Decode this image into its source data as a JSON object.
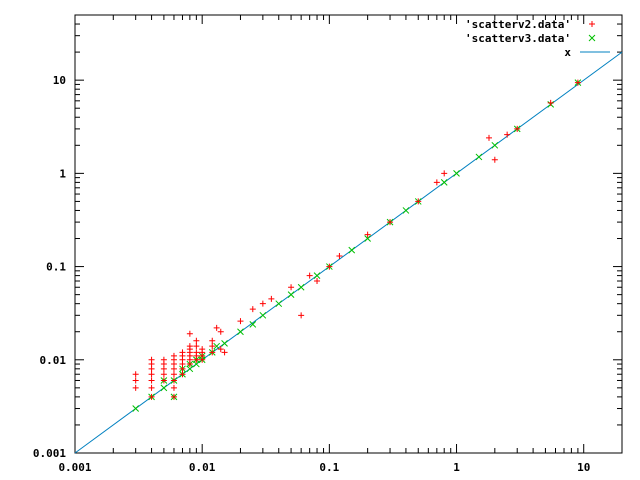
{
  "chart_data": {
    "type": "scatter",
    "xscale": "log",
    "yscale": "log",
    "xlim": [
      0.001,
      20
    ],
    "ylim": [
      0.001,
      50
    ],
    "grid": false,
    "legend_position": "top-right",
    "x_tick_labels": [
      "0.001",
      "0.01",
      "0.1",
      "1",
      "10"
    ],
    "x_ticks": [
      0.001,
      0.01,
      0.1,
      1,
      10
    ],
    "y_tick_labels": [
      "0.001",
      "0.01",
      "0.1",
      "1",
      "10"
    ],
    "y_ticks": [
      0.001,
      0.01,
      0.1,
      1,
      10
    ],
    "series": [
      {
        "name": "'scatterv2.data'",
        "marker": "plus",
        "color": "#ff0000",
        "points": [
          [
            0.003,
            0.007
          ],
          [
            0.003,
            0.006
          ],
          [
            0.003,
            0.005
          ],
          [
            0.004,
            0.01
          ],
          [
            0.004,
            0.009
          ],
          [
            0.004,
            0.008
          ],
          [
            0.004,
            0.007
          ],
          [
            0.004,
            0.006
          ],
          [
            0.004,
            0.005
          ],
          [
            0.004,
            0.004
          ],
          [
            0.005,
            0.01
          ],
          [
            0.005,
            0.009
          ],
          [
            0.005,
            0.008
          ],
          [
            0.005,
            0.007
          ],
          [
            0.005,
            0.006
          ],
          [
            0.006,
            0.011
          ],
          [
            0.006,
            0.01
          ],
          [
            0.006,
            0.009
          ],
          [
            0.006,
            0.008
          ],
          [
            0.006,
            0.007
          ],
          [
            0.006,
            0.006
          ],
          [
            0.006,
            0.005
          ],
          [
            0.006,
            0.004
          ],
          [
            0.007,
            0.012
          ],
          [
            0.007,
            0.011
          ],
          [
            0.007,
            0.01
          ],
          [
            0.007,
            0.009
          ],
          [
            0.007,
            0.008
          ],
          [
            0.007,
            0.007
          ],
          [
            0.008,
            0.019
          ],
          [
            0.008,
            0.014
          ],
          [
            0.008,
            0.013
          ],
          [
            0.008,
            0.012
          ],
          [
            0.008,
            0.011
          ],
          [
            0.008,
            0.01
          ],
          [
            0.008,
            0.009
          ],
          [
            0.009,
            0.016
          ],
          [
            0.009,
            0.014
          ],
          [
            0.009,
            0.012
          ],
          [
            0.009,
            0.011
          ],
          [
            0.009,
            0.01
          ],
          [
            0.01,
            0.013
          ],
          [
            0.01,
            0.012
          ],
          [
            0.01,
            0.011
          ],
          [
            0.01,
            0.01
          ],
          [
            0.012,
            0.016
          ],
          [
            0.012,
            0.014
          ],
          [
            0.012,
            0.012
          ],
          [
            0.013,
            0.022
          ],
          [
            0.014,
            0.02
          ],
          [
            0.014,
            0.013
          ],
          [
            0.015,
            0.012
          ],
          [
            0.02,
            0.026
          ],
          [
            0.025,
            0.035
          ],
          [
            0.03,
            0.04
          ],
          [
            0.035,
            0.045
          ],
          [
            0.05,
            0.06
          ],
          [
            0.07,
            0.08
          ],
          [
            0.08,
            0.07
          ],
          [
            0.1,
            0.1
          ],
          [
            0.12,
            0.13
          ],
          [
            0.2,
            0.22
          ],
          [
            0.3,
            0.3
          ],
          [
            0.5,
            0.5
          ],
          [
            0.7,
            0.8
          ],
          [
            0.8,
            1.0
          ],
          [
            1.8,
            2.4
          ],
          [
            2.0,
            1.4
          ],
          [
            2.5,
            2.6
          ],
          [
            3.0,
            3.0
          ],
          [
            5.5,
            5.7
          ],
          [
            9.0,
            9.4
          ],
          [
            0.06,
            0.03
          ]
        ]
      },
      {
        "name": "'scatterv3.data'",
        "marker": "cross",
        "color": "#00c000",
        "points": [
          [
            0.003,
            0.003
          ],
          [
            0.004,
            0.004
          ],
          [
            0.005,
            0.005
          ],
          [
            0.005,
            0.006
          ],
          [
            0.006,
            0.004
          ],
          [
            0.006,
            0.006
          ],
          [
            0.007,
            0.007
          ],
          [
            0.007,
            0.008
          ],
          [
            0.008,
            0.008
          ],
          [
            0.008,
            0.009
          ],
          [
            0.009,
            0.009
          ],
          [
            0.009,
            0.01
          ],
          [
            0.01,
            0.01
          ],
          [
            0.01,
            0.011
          ],
          [
            0.012,
            0.012
          ],
          [
            0.015,
            0.015
          ],
          [
            0.013,
            0.014
          ],
          [
            0.02,
            0.02
          ],
          [
            0.025,
            0.024
          ],
          [
            0.03,
            0.03
          ],
          [
            0.04,
            0.04
          ],
          [
            0.05,
            0.05
          ],
          [
            0.06,
            0.06
          ],
          [
            0.08,
            0.08
          ],
          [
            0.1,
            0.1
          ],
          [
            0.15,
            0.15
          ],
          [
            0.2,
            0.2
          ],
          [
            0.3,
            0.3
          ],
          [
            0.4,
            0.4
          ],
          [
            0.5,
            0.5
          ],
          [
            0.8,
            0.8
          ],
          [
            1.0,
            1.0
          ],
          [
            1.5,
            1.5
          ],
          [
            2.0,
            2.0
          ],
          [
            3.0,
            3.0
          ],
          [
            5.5,
            5.5
          ],
          [
            9.0,
            9.4
          ]
        ]
      },
      {
        "name": "x",
        "type": "line",
        "color": "#0080c0",
        "points": [
          [
            0.001,
            0.001
          ],
          [
            20,
            20
          ]
        ]
      }
    ]
  }
}
